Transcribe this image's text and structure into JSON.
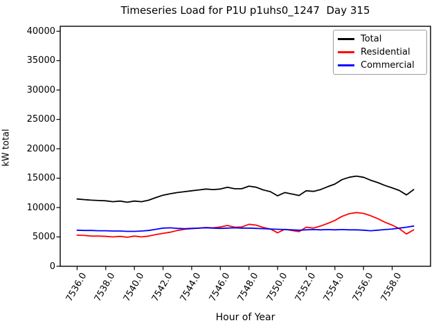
{
  "chart_data": {
    "type": "line",
    "title": "Timeseries Load for P1U p1uhs0_1247  Day 315",
    "xlabel": "Hour of Year",
    "ylabel": "kW total",
    "xlim": [
      7534.82,
      7560.68
    ],
    "ylim": [
      0,
      40850
    ],
    "grid": false,
    "xtick_rotation_deg": 60,
    "xticks": [
      7536,
      7538,
      7540,
      7542,
      7544,
      7546,
      7548,
      7550,
      7552,
      7554,
      7556,
      7558
    ],
    "xtick_labels": [
      "7536.0",
      "7538.0",
      "7540.0",
      "7542.0",
      "7544.0",
      "7546.0",
      "7548.0",
      "7550.0",
      "7552.0",
      "7554.0",
      "7556.0",
      "7558.0"
    ],
    "yticks": [
      0,
      5000,
      10000,
      15000,
      20000,
      25000,
      30000,
      35000,
      40000
    ],
    "ytick_labels": [
      "0",
      "5000",
      "10000",
      "15000",
      "20000",
      "25000",
      "30000",
      "35000",
      "40000"
    ],
    "legend": {
      "position": "upper right",
      "entries": [
        "Total",
        "Residential",
        "Commercial"
      ]
    },
    "x": [
      7536.0,
      7536.5,
      7537.0,
      7537.5,
      7538.0,
      7538.5,
      7539.0,
      7539.5,
      7540.0,
      7540.5,
      7541.0,
      7541.5,
      7542.0,
      7542.5,
      7543.0,
      7543.5,
      7544.0,
      7544.5,
      7545.0,
      7545.5,
      7546.0,
      7546.5,
      7547.0,
      7547.5,
      7548.0,
      7548.5,
      7549.0,
      7549.5,
      7550.0,
      7550.5,
      7551.0,
      7551.5,
      7552.0,
      7552.5,
      7553.0,
      7553.5,
      7554.0,
      7554.5,
      7555.0,
      7555.5,
      7556.0,
      7556.5,
      7557.0,
      7557.5,
      7558.0,
      7558.5,
      7559.0,
      7559.5
    ],
    "series": [
      {
        "name": "Total",
        "color": "#000000",
        "values": [
          11450,
          11350,
          11250,
          11200,
          11150,
          11000,
          11100,
          10900,
          11100,
          11000,
          11250,
          11700,
          12100,
          12350,
          12550,
          12700,
          12850,
          13000,
          13150,
          13050,
          13150,
          13450,
          13200,
          13200,
          13650,
          13450,
          13000,
          12700,
          12000,
          12550,
          12300,
          12050,
          12850,
          12750,
          13050,
          13550,
          14000,
          14750,
          15150,
          15350,
          15150,
          14650,
          14250,
          13750,
          13350,
          12900,
          12150,
          13050
        ]
      },
      {
        "name": "Residential",
        "color": "#ff0000",
        "values": [
          5300,
          5250,
          5150,
          5150,
          5100,
          5000,
          5100,
          4950,
          5150,
          5000,
          5150,
          5400,
          5600,
          5800,
          6100,
          6300,
          6400,
          6500,
          6600,
          6550,
          6700,
          6950,
          6650,
          6700,
          7150,
          7000,
          6600,
          6350,
          5700,
          6300,
          6100,
          5900,
          6650,
          6500,
          6850,
          7300,
          7800,
          8500,
          8950,
          9150,
          9000,
          8600,
          8100,
          7500,
          7000,
          6400,
          5500,
          6200
        ]
      },
      {
        "name": "Commercial",
        "color": "#0000ff",
        "values": [
          6150,
          6100,
          6100,
          6050,
          6050,
          6000,
          6000,
          5950,
          5950,
          6000,
          6100,
          6300,
          6500,
          6550,
          6450,
          6400,
          6450,
          6500,
          6550,
          6500,
          6450,
          6500,
          6550,
          6500,
          6500,
          6450,
          6400,
          6350,
          6300,
          6250,
          6200,
          6150,
          6200,
          6250,
          6200,
          6250,
          6200,
          6250,
          6200,
          6200,
          6150,
          6050,
          6150,
          6250,
          6350,
          6500,
          6650,
          6850
        ]
      }
    ]
  }
}
